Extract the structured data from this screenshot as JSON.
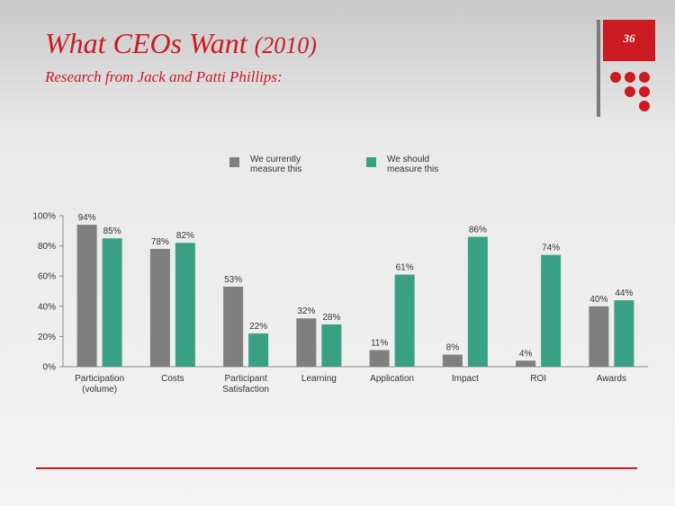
{
  "slide": {
    "title_main": "What CEOs Want",
    "title_year": "(2010)",
    "subtitle": "Research from Jack and Patti Phillips:",
    "page_number": "36"
  },
  "colors": {
    "accent": "#cc1a22",
    "current": "#7f7f7f",
    "should": "#3aa084"
  },
  "chart_data": {
    "type": "bar",
    "categories": [
      "Participation\n(volume)",
      "Costs",
      "Participant\nSatisfaction",
      "Learning",
      "Application",
      "Impact",
      "ROI",
      "Awards"
    ],
    "series": [
      {
        "name": "We currently\nmeasure this",
        "values": [
          94,
          78,
          53,
          32,
          11,
          8,
          4,
          40
        ]
      },
      {
        "name": "We should\nmeasure this",
        "values": [
          85,
          82,
          22,
          28,
          61,
          86,
          74,
          44
        ]
      }
    ],
    "ylim": [
      0,
      100
    ],
    "yticks": [
      "0%",
      "20%",
      "40%",
      "60%",
      "80%",
      "100%"
    ],
    "value_suffix": "%",
    "xlabel": "",
    "ylabel": "",
    "legend": "top",
    "grid": false
  }
}
